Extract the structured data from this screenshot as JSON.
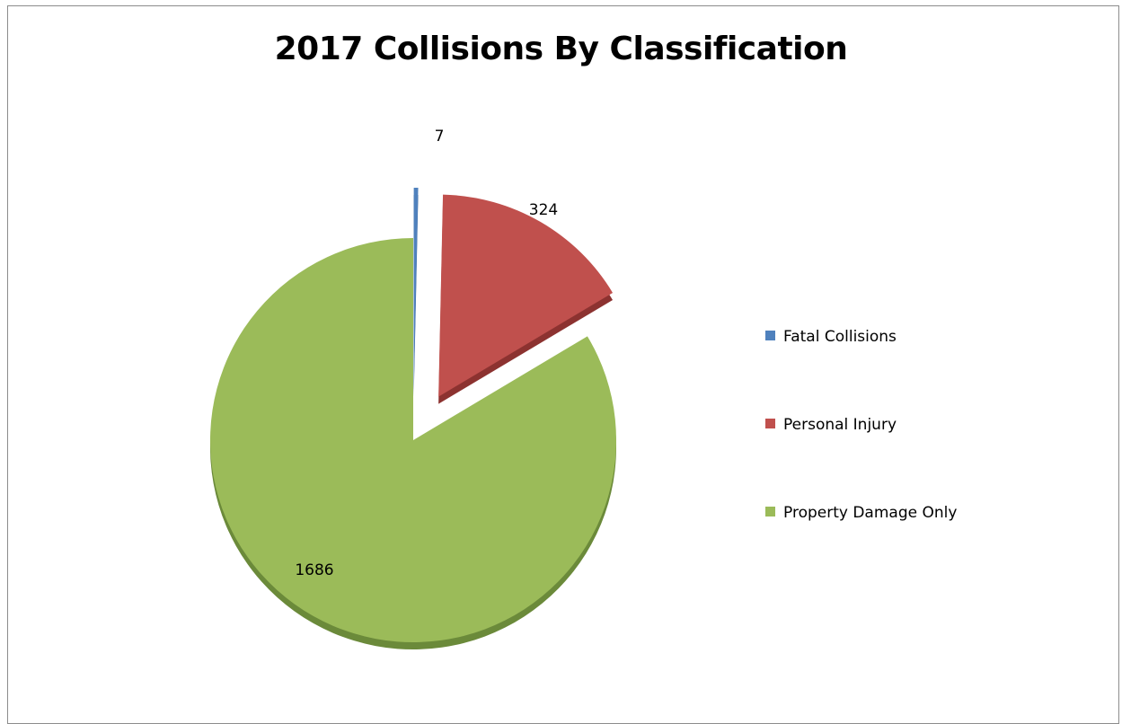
{
  "chart_data": {
    "type": "pie",
    "title": "2017 Collisions By Classification",
    "categories": [
      "Fatal Collisions",
      "Personal Injury",
      "Property Damage Only"
    ],
    "values": [
      7,
      324,
      1686
    ],
    "colors": [
      "#4f81bd",
      "#c0504d",
      "#9bbb59"
    ],
    "side_colors": [
      "#3a6190",
      "#8c3230",
      "#6b8a3a"
    ],
    "exploded": [
      true,
      true,
      false
    ],
    "data_labels": [
      "7",
      "324",
      "1686"
    ],
    "legend": {
      "position": "right",
      "entries": [
        "Fatal Collisions",
        "Personal Injury",
        "Property Damage Only"
      ]
    },
    "style": "3d"
  }
}
